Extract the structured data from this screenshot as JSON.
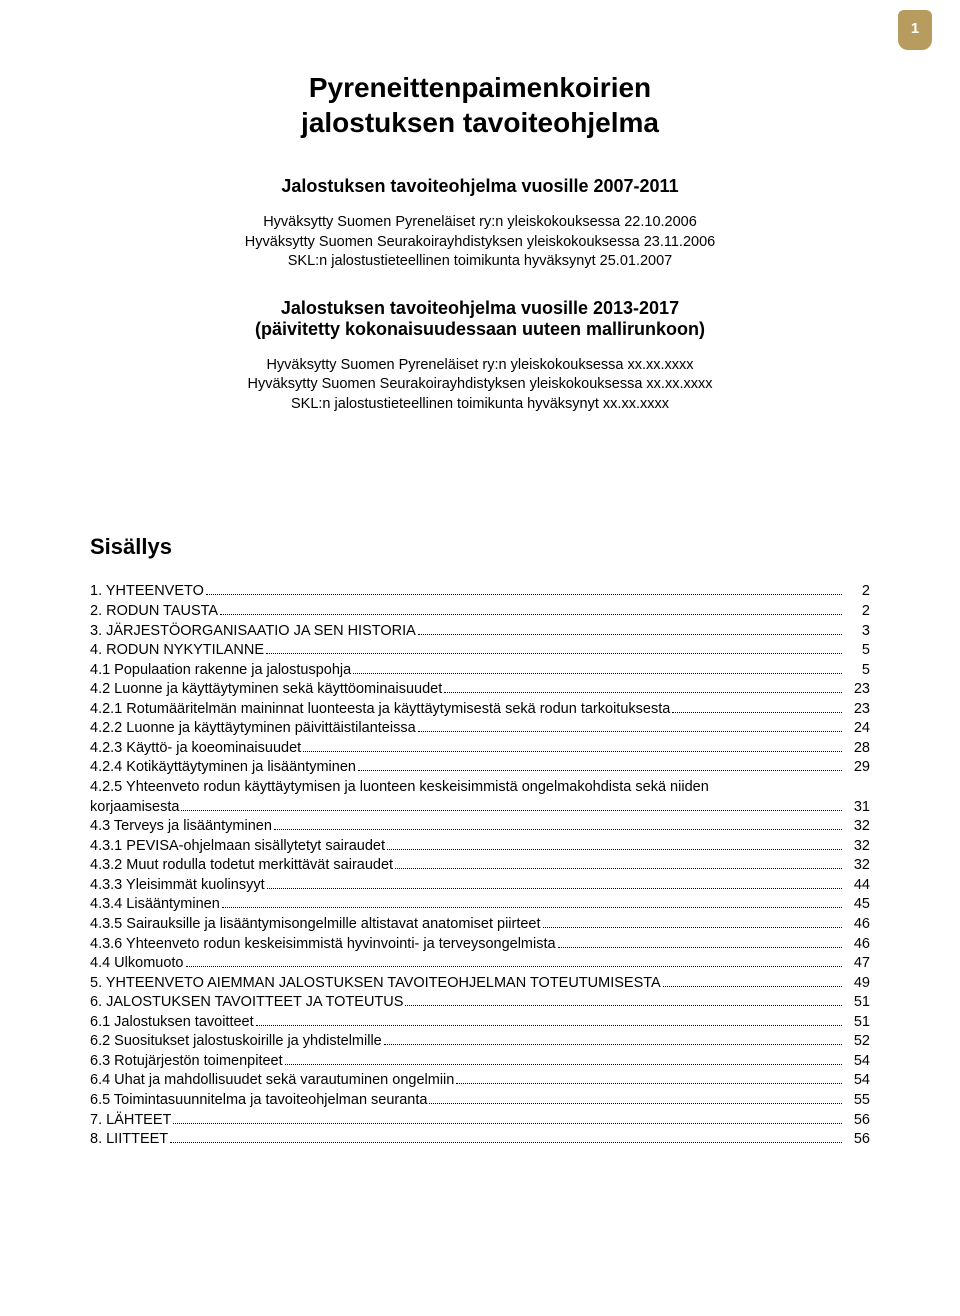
{
  "page_number": "1",
  "title_line1": "Pyreneittenpaimenkoirien",
  "title_line2": "jalostuksen tavoiteohjelma",
  "block1": {
    "heading": "Jalostuksen tavoiteohjelma vuosille 2007-2011",
    "lines": [
      "Hyväksytty Suomen Pyreneläiset ry:n yleiskokouksessa 22.10.2006",
      "Hyväksytty Suomen Seurakoirayhdistyksen yleiskokouksessa 23.11.2006",
      "SKL:n jalostustieteellinen toimikunta hyväksynyt 25.01.2007"
    ]
  },
  "block2": {
    "heading_l1": "Jalostuksen tavoiteohjelma vuosille 2013-2017",
    "heading_l2": "(päivitetty kokonaisuudessaan uuteen mallirunkoon)",
    "lines": [
      "Hyväksytty Suomen Pyreneläiset ry:n yleiskokouksessa xx.xx.xxxx",
      "Hyväksytty Suomen Seurakoirayhdistyksen yleiskokouksessa xx.xx.xxxx",
      "SKL:n jalostustieteellinen toimikunta hyväksynyt xx.xx.xxxx"
    ]
  },
  "sisallys_title": "Sisällys",
  "toc": [
    {
      "label": "1. YHTEENVETO",
      "page": "2"
    },
    {
      "label": "2. RODUN TAUSTA",
      "page": "2"
    },
    {
      "label": "3. JÄRJESTÖORGANISAATIO JA SEN HISTORIA",
      "page": "3"
    },
    {
      "label": "4. RODUN NYKYTILANNE",
      "page": "5"
    },
    {
      "label": "4.1  Populaation rakenne ja jalostuspohja",
      "page": "5"
    },
    {
      "label": "4.2  Luonne ja käyttäytyminen sekä käyttöominaisuudet",
      "page": "23"
    },
    {
      "label": "4.2.1 Rotumääritelmän maininnat luonteesta ja käyttäytymisestä sekä rodun tarkoituksesta",
      "page": "23"
    },
    {
      "label": "4.2.2 Luonne ja käyttäytyminen päivittäistilanteissa",
      "page": "24"
    },
    {
      "label": "4.2.3 Käyttö- ja koeominaisuudet",
      "page": "28"
    },
    {
      "label": "4.2.4 Kotikäyttäytyminen ja lisääntyminen",
      "page": "29"
    },
    {
      "label": "4.2.5 Yhteenveto rodun käyttäytymisen ja luonteen keskeisimmistä ongelmakohdista sekä niiden",
      "page": ""
    },
    {
      "label": "korjaamisesta",
      "page": "31"
    },
    {
      "label": "4.3  Terveys ja lisääntyminen",
      "page": "32"
    },
    {
      "label": "4.3.1 PEVISA-ohjelmaan sisällytetyt sairaudet",
      "page": "32"
    },
    {
      "label": "4.3.2 Muut rodulla todetut merkittävät sairaudet",
      "page": "32"
    },
    {
      "label": "4.3.3 Yleisimmät kuolinsyyt",
      "page": "44"
    },
    {
      "label": "4.3.4 Lisääntyminen",
      "page": "45"
    },
    {
      "label": "4.3.5 Sairauksille ja lisääntymisongelmille altistavat anatomiset piirteet",
      "page": "46"
    },
    {
      "label": "4.3.6 Yhteenveto rodun keskeisimmistä hyvinvointi- ja terveysongelmista",
      "page": "46"
    },
    {
      "label": "4.4  Ulkomuoto",
      "page": "47"
    },
    {
      "label": "5. YHTEENVETO AIEMMAN JALOSTUKSEN TAVOITEOHJELMAN TOTEUTUMISESTA",
      "page": "49"
    },
    {
      "label": "6. JALOSTUKSEN TAVOITTEET JA TOTEUTUS",
      "page": "51"
    },
    {
      "label": "6.1 Jalostuksen tavoitteet",
      "page": "51"
    },
    {
      "label": "6.2 Suositukset jalostuskoirille ja yhdistelmille",
      "page": "52"
    },
    {
      "label": "6.3 Rotujärjestön toimenpiteet",
      "page": "54"
    },
    {
      "label": "6.4 Uhat ja mahdollisuudet sekä varautuminen ongelmiin",
      "page": "54"
    },
    {
      "label": "6.5 Toimintasuunnitelma ja tavoiteohjelman seuranta",
      "page": "55"
    },
    {
      "label": "7. LÄHTEET",
      "page": "56"
    },
    {
      "label": "8. LIITTEET",
      "page": "56"
    }
  ]
}
